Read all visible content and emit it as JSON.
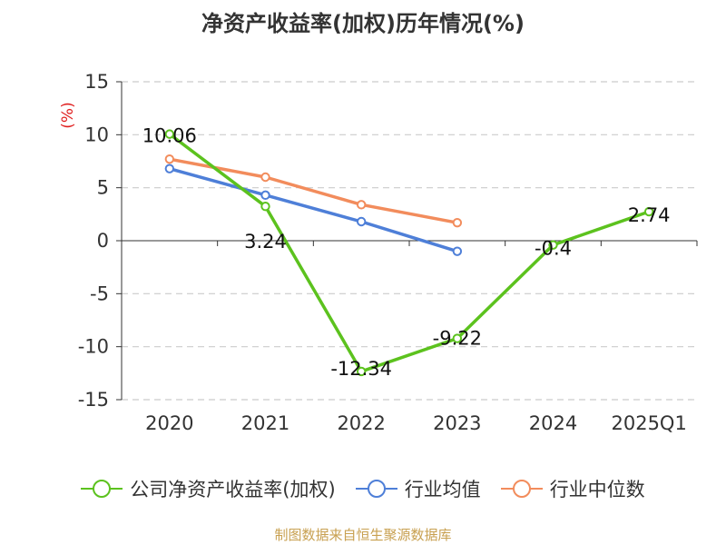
{
  "chart_data": {
    "type": "line",
    "title": "净资产收益率(加权)历年情况(%)",
    "ylabel": "(%)",
    "xlabel": "",
    "categories": [
      "2020",
      "2021",
      "2022",
      "2023",
      "2024",
      "2025Q1"
    ],
    "ylim": [
      -15,
      15
    ],
    "yticks": [
      15,
      10,
      5,
      0,
      -5,
      -10,
      -15
    ],
    "grid": true,
    "legend_position": "bottom",
    "series": [
      {
        "name": "公司净资产收益率(加权)",
        "color": "#5cc21e",
        "values": [
          10.06,
          3.24,
          -12.34,
          -9.22,
          -0.4,
          2.74
        ],
        "labels": [
          "10.06",
          "3.24",
          "-12.34",
          "-9.22",
          "-0.4",
          "2.74"
        ]
      },
      {
        "name": "行业均值",
        "color": "#4e7fd8",
        "values": [
          6.8,
          4.3,
          1.8,
          -1.0,
          null,
          null
        ]
      },
      {
        "name": "行业中位数",
        "color": "#f28c5c",
        "values": [
          7.7,
          6.0,
          3.4,
          1.7,
          null,
          null
        ]
      }
    ]
  },
  "footer": {
    "source": "制图数据来自恒生聚源数据库"
  }
}
